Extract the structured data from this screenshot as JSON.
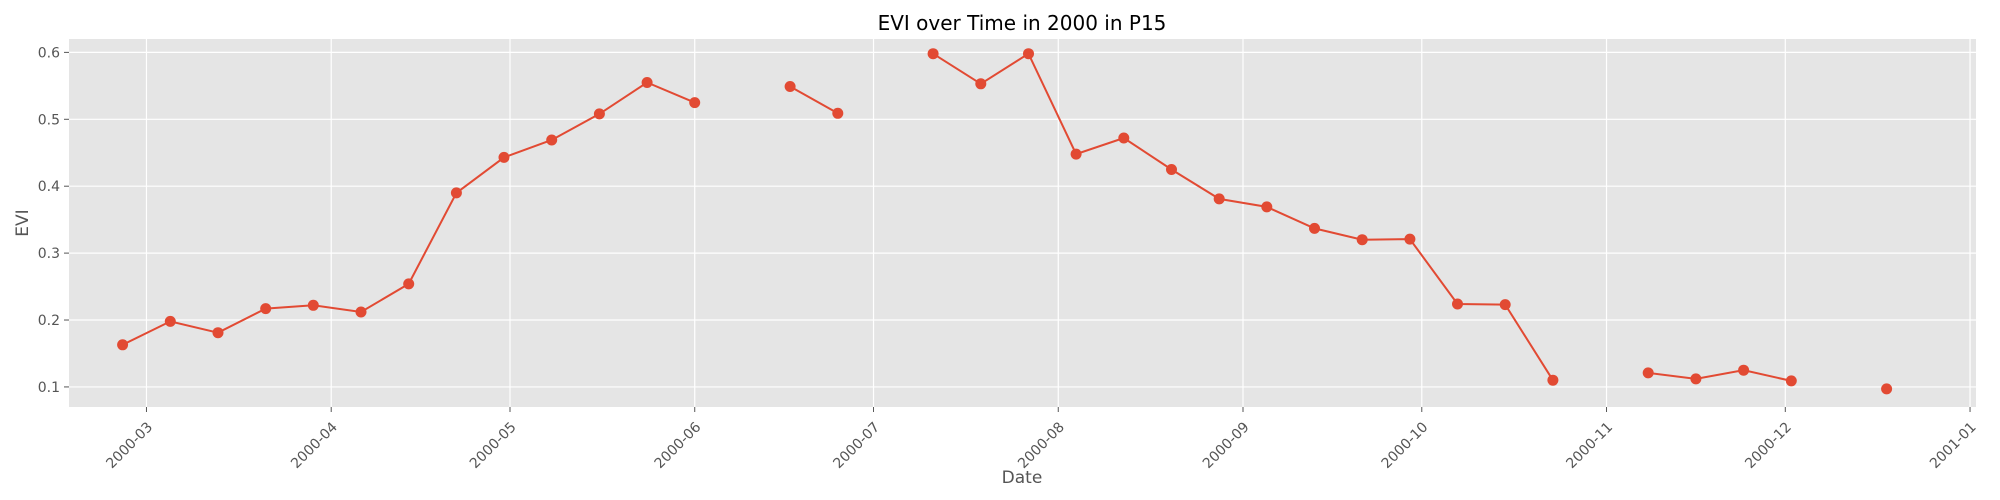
{
  "chart_data": {
    "type": "line",
    "title": "EVI over Time in 2000 in P15",
    "xlabel": "Date",
    "ylabel": "EVI",
    "x_axis_type": "date",
    "xlim": [
      "2000-02-17",
      "2001-01-02"
    ],
    "ylim": [
      0.07,
      0.62
    ],
    "grid": true,
    "style": "ggplot",
    "colors": {
      "series": "#e24a33",
      "plot_background": "#e5e5e5",
      "grid": "#ffffff"
    },
    "x_ticks": [
      "2000-03-01",
      "2000-04-01",
      "2000-05-01",
      "2000-06-01",
      "2000-07-01",
      "2000-08-01",
      "2000-09-01",
      "2000-10-01",
      "2000-11-01",
      "2000-12-01",
      "2001-01-01"
    ],
    "x_tick_labels": [
      "2000-03",
      "2000-04",
      "2000-05",
      "2000-06",
      "2000-07",
      "2000-08",
      "2000-09",
      "2000-10",
      "2000-11",
      "2000-12",
      "2001-01"
    ],
    "y_ticks": [
      0.1,
      0.2,
      0.3,
      0.4,
      0.5,
      0.6
    ],
    "y_tick_labels": [
      "0.1",
      "0.2",
      "0.3",
      "0.4",
      "0.5",
      "0.6"
    ],
    "series": [
      {
        "marker": "circle",
        "x": [
          "2000-02-26",
          "2000-03-05",
          "2000-03-13",
          "2000-03-21",
          "2000-03-29",
          "2000-04-06",
          "2000-04-14",
          "2000-04-22",
          "2000-04-30",
          "2000-05-08",
          "2000-05-16",
          "2000-05-24",
          "2000-06-01",
          "2000-06-09",
          "2000-06-17",
          "2000-06-25",
          "2000-07-03",
          "2000-07-11",
          "2000-07-19",
          "2000-07-27",
          "2000-08-04",
          "2000-08-12",
          "2000-08-20",
          "2000-08-28",
          "2000-09-05",
          "2000-09-13",
          "2000-09-21",
          "2000-09-29",
          "2000-10-07",
          "2000-10-15",
          "2000-10-23",
          "2000-10-31",
          "2000-11-08",
          "2000-11-16",
          "2000-11-24",
          "2000-12-02",
          "2000-12-10",
          "2000-12-18"
        ],
        "values": [
          0.163,
          0.198,
          0.181,
          0.217,
          0.222,
          0.212,
          0.254,
          0.39,
          0.443,
          0.469,
          0.508,
          0.555,
          0.525,
          null,
          0.549,
          0.509,
          null,
          0.598,
          0.553,
          0.598,
          0.448,
          0.472,
          0.425,
          0.381,
          0.369,
          0.337,
          0.32,
          0.321,
          0.224,
          0.223,
          0.11,
          null,
          0.121,
          0.112,
          0.125,
          0.109,
          null,
          0.097
        ]
      }
    ]
  }
}
